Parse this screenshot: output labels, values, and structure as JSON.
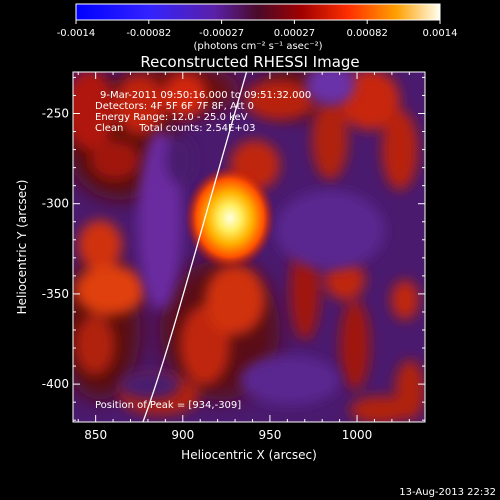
{
  "colorbar": {
    "ticks": [
      "-0.0014",
      "-0.00082",
      "-0.00027",
      "0.00027",
      "0.00082",
      "0.0014"
    ],
    "unit_label": "(photons cm⁻² s⁻¹ asec⁻²)"
  },
  "image": {
    "title": "Reconstructed RHESSI Image",
    "info": [
      "9-Mar-2011 09:50:16.000 to 09:51:32.000",
      "Detectors: 4F 5F 6F 7F 8F, Att 0",
      "Energy Range: 12.0 - 25.0 keV",
      "Clean     Total counts: 2.54E+03"
    ],
    "peak_text": "Position of Peak = [934,-309]"
  },
  "axes": {
    "xlabel": "Heliocentric X (arcsec)",
    "ylabel": "Heliocentric Y (arcsec)",
    "xticks": [
      "850",
      "900",
      "950",
      "1000"
    ],
    "yticks": [
      "-250",
      "-300",
      "-350",
      "-400"
    ],
    "x_tick_values": [
      850,
      900,
      950,
      1000
    ],
    "y_tick_values": [
      -250,
      -300,
      -350,
      -400
    ],
    "xlim": [
      837,
      1039
    ],
    "ylim": [
      -421,
      -227
    ]
  },
  "footer": {
    "timestamp": "13-Aug-2013 22:32"
  },
  "colors": {
    "background": "#000000",
    "text": "#ffffff",
    "limb_line": "#ffffff"
  }
}
